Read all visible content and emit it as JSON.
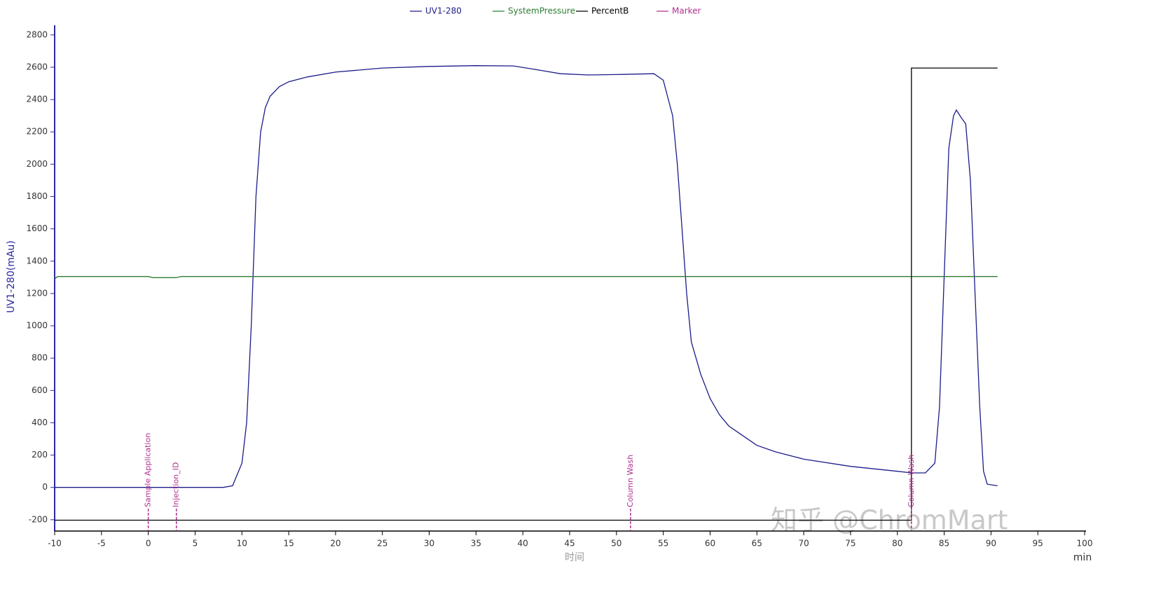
{
  "chart_data": {
    "type": "line",
    "x_label": "时间",
    "x_unit": "min",
    "y_label": "UV1-280(mAu)",
    "watermark": "知乎 @ChromMart",
    "xlim": [
      -10,
      100
    ],
    "ylim": [
      -270,
      2860
    ],
    "xticks": [
      -10,
      -5,
      0,
      5,
      10,
      15,
      20,
      25,
      30,
      35,
      40,
      45,
      50,
      55,
      60,
      65,
      70,
      75,
      80,
      85,
      90,
      95,
      100
    ],
    "yticks": [
      -200,
      0,
      200,
      400,
      600,
      800,
      1000,
      1200,
      1400,
      1600,
      1800,
      2000,
      2200,
      2400,
      2600,
      2800
    ],
    "series": [
      {
        "name": "UV1-280",
        "color": "#1c1c8a",
        "x": [
          -10,
          8,
          9,
          10,
          10.5,
          11,
          11.5,
          12,
          12.5,
          13,
          14,
          15,
          17,
          20,
          25,
          30,
          35,
          39,
          42,
          44,
          47,
          50,
          54,
          55,
          56,
          56.5,
          57,
          57.5,
          58,
          59,
          60,
          61,
          62,
          63,
          65,
          67,
          70,
          75,
          80,
          81.5,
          83,
          84,
          84.5,
          85,
          85.5,
          86,
          86.3,
          86.8,
          87.3,
          87.8,
          88.3,
          88.8,
          89.2,
          89.6,
          90.7
        ],
        "values": [
          0,
          0,
          10,
          150,
          400,
          1000,
          1800,
          2200,
          2350,
          2420,
          2480,
          2510,
          2540,
          2570,
          2595,
          2605,
          2610,
          2608,
          2580,
          2560,
          2552,
          2555,
          2560,
          2520,
          2300,
          2000,
          1600,
          1200,
          900,
          700,
          550,
          450,
          380,
          340,
          260,
          220,
          175,
          130,
          100,
          90,
          90,
          150,
          500,
          1300,
          2100,
          2300,
          2335,
          2290,
          2250,
          1900,
          1200,
          500,
          100,
          20,
          10
        ]
      },
      {
        "name": "SystemPressure",
        "color": "#2e7d32",
        "x": [
          -10,
          -9.7,
          0,
          0.5,
          3,
          3.5,
          90.7
        ],
        "values": [
          1290,
          1305,
          1305,
          1298,
          1298,
          1305,
          1305
        ]
      },
      {
        "name": "PercentB",
        "color": "#000000",
        "x": [
          -10,
          81.5,
          81.5,
          90.7
        ],
        "values": [
          -203,
          -203,
          2595,
          2595
        ]
      },
      {
        "name": "Marker",
        "color": "#b0308f",
        "x": [
          0,
          3,
          51.5,
          81.5
        ],
        "labels": [
          "Sample Application",
          "Injection_ID",
          "Column Wash",
          "Column Wash"
        ]
      }
    ]
  }
}
